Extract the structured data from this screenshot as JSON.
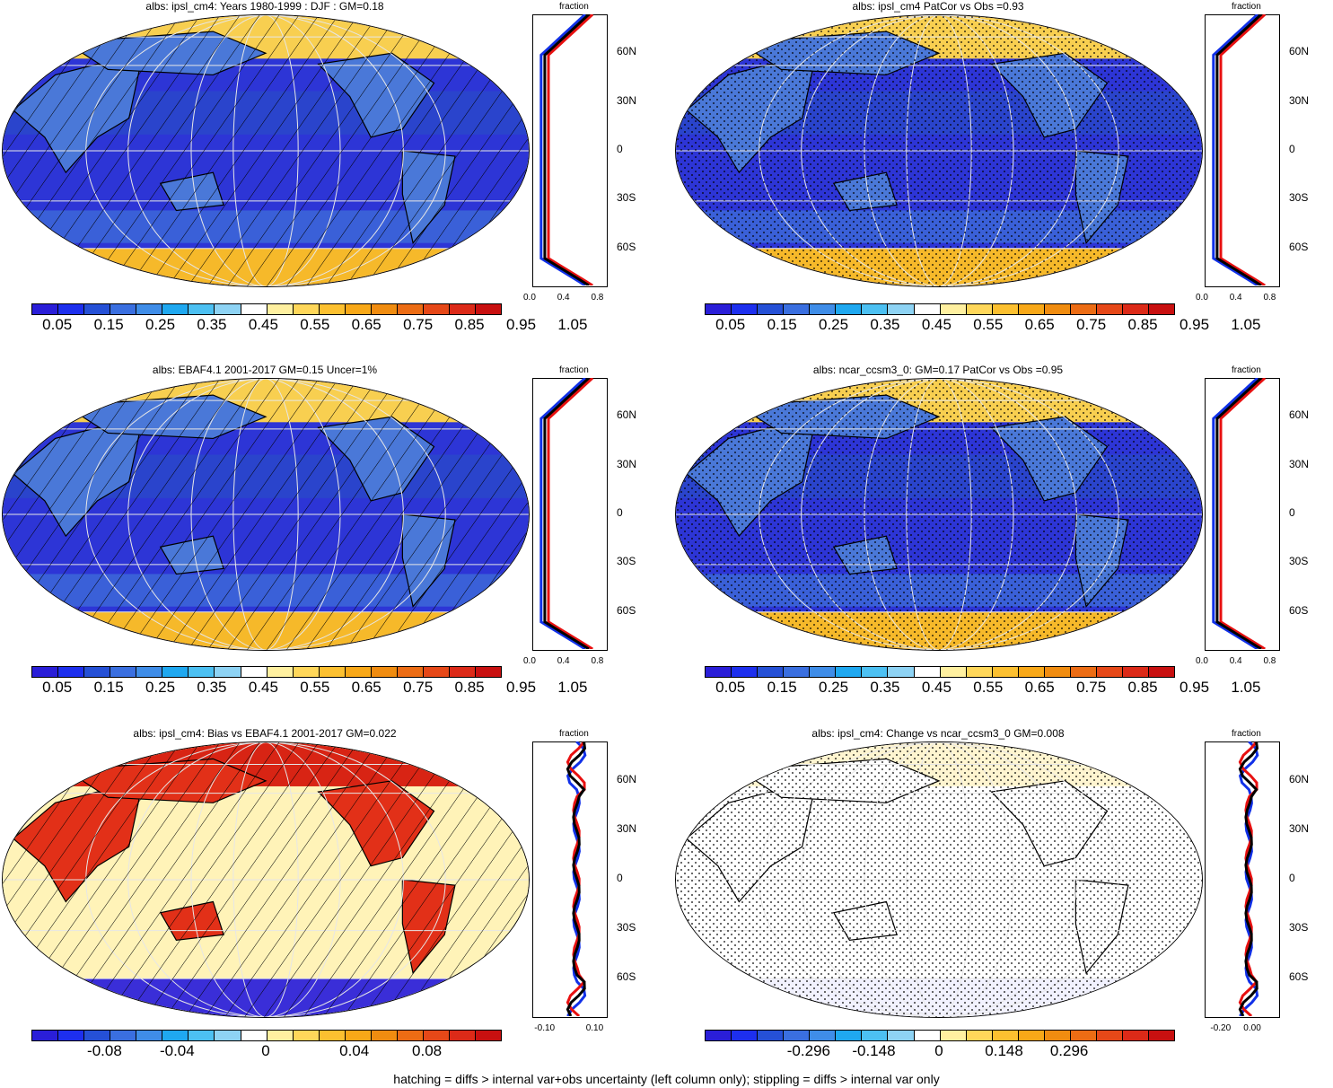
{
  "panels": [
    {
      "title": "albs: ipsl_cm4: Years 1980-1999 : DJF : GM=0.18",
      "type": "abs",
      "hatch": "lines"
    },
    {
      "title": "albs: ipsl_cm4 PatCor vs Obs =0.93",
      "type": "abs",
      "hatch": "dots"
    },
    {
      "title": "albs: EBAF4.1 2001-2017 GM=0.15 Uncer=1%",
      "type": "abs",
      "hatch": "lines"
    },
    {
      "title": "albs: ncar_ccsm3_0: GM=0.17 PatCor vs Obs =0.95",
      "type": "abs",
      "hatch": "dots"
    },
    {
      "title": "albs: ipsl_cm4: Bias vs EBAF4.1 2001-2017 GM=0.022",
      "type": "diff",
      "hatch": "lines"
    },
    {
      "title": "albs: ipsl_cm4: Change vs ncar_ccsm3_0 GM=0.008",
      "type": "change",
      "hatch": "dots"
    }
  ],
  "colorbars": {
    "abs": [
      "0.05",
      "0.15",
      "0.25",
      "0.35",
      "0.45",
      "0.55",
      "0.65",
      "0.75",
      "0.85",
      "0.95",
      "1.05"
    ],
    "diff": [
      "-0.08",
      "-0.04",
      "0",
      "0.04",
      "0.08"
    ],
    "change": [
      "-0.296",
      "-0.148",
      "0",
      "0.148",
      "0.296"
    ],
    "colors": [
      "#2a1ed8",
      "#1d2fee",
      "#2550d6",
      "#3a6fe0",
      "#3f8de8",
      "#1fa8f0",
      "#4cc0f2",
      "#8ed3f4",
      "#ffffff",
      "#fff0a0",
      "#ffd75a",
      "#fcc030",
      "#f8a818",
      "#f08c10",
      "#ec6c14",
      "#e64818",
      "#dc2a18",
      "#c81010"
    ]
  },
  "zonal": {
    "title": "fraction",
    "lat_labels": [
      "60N",
      "30N",
      "0",
      "30S",
      "60S"
    ],
    "abs_x_ticks": [
      "0.0",
      "0.4",
      "0.8"
    ],
    "diff_x_ticks": [
      "-0.10",
      "0.10"
    ],
    "change_x_ticks": [
      "-0.20",
      "0.00"
    ]
  },
  "footer": "hatching = diffs > internal var+obs uncertainty (left column only); stippling = diffs > internal var only"
}
